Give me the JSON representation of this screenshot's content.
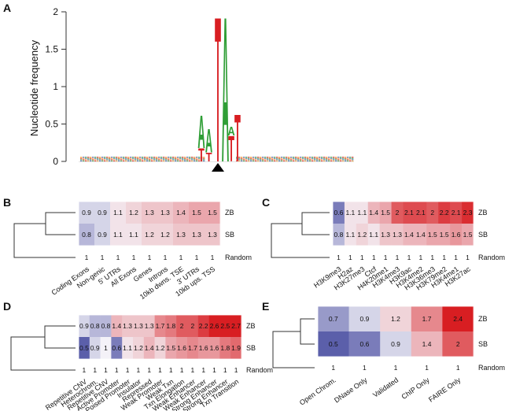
{
  "panels": {
    "a": {
      "label": "A"
    },
    "b": {
      "label": "B"
    },
    "c": {
      "label": "C"
    },
    "d": {
      "label": "D"
    },
    "e": {
      "label": "E"
    }
  },
  "chart_data": [
    {
      "type": "sequence-logo",
      "panel": "A",
      "ylabel": "Nucleotide frequency",
      "yticks": [
        0,
        0.5,
        1,
        1.5,
        2
      ],
      "ylim": [
        0,
        2
      ],
      "positions": [
        {
          "stack": [
            [
              "T",
              0.18
            ],
            [
              "A",
              0.45
            ]
          ]
        },
        {
          "stack": [
            [
              "T",
              0.12
            ],
            [
              "A",
              0.32
            ]
          ]
        },
        {
          "stack": [
            [
              "T",
              2.0
            ]
          ]
        },
        {
          "stack": [
            [
              "A",
              2.0
            ]
          ]
        },
        {
          "stack": [
            [
              "T",
              0.35
            ],
            [
              "A",
              0.12
            ]
          ]
        },
        {
          "stack": [
            [
              "T",
              0.65
            ]
          ]
        }
      ],
      "insertion_marker": true
    },
    {
      "type": "heatmap",
      "panel": "B",
      "rows": [
        "ZB",
        "SB",
        "Random"
      ],
      "columns": [
        "Coding Exons",
        "Non-genic",
        "5' UTRs",
        "All Exons",
        "Genes",
        "Introns",
        "10kb dwns. TSE",
        "3' UTRs",
        "10kb ups. TSS"
      ],
      "values": [
        [
          0.9,
          0.9,
          1.1,
          1.2,
          1.3,
          1.3,
          1.4,
          1.5,
          1.5
        ],
        [
          0.8,
          0.9,
          1.1,
          1.1,
          1.2,
          1.2,
          1.3,
          1.3,
          1.3
        ],
        [
          1,
          1,
          1,
          1,
          1,
          1,
          1,
          1,
          1
        ]
      ],
      "value_labels": [
        [
          "0.9",
          "0.9",
          "1.1",
          "1.2",
          "1.3",
          "1.3",
          "1.4",
          "1.5",
          "1.5"
        ],
        [
          "0.8",
          "0.9",
          "1.1",
          "1.1",
          "1.2",
          "1.2",
          "1.3",
          "1.3",
          "1.3"
        ],
        [
          "1",
          "1",
          "1",
          "1",
          "1",
          "1",
          "1",
          "1",
          "1"
        ]
      ]
    },
    {
      "type": "heatmap",
      "panel": "C",
      "rows": [
        "ZB",
        "SB",
        "Random"
      ],
      "columns": [
        "H3K9me3",
        "H2az",
        "H3K27me3",
        "Ctcf",
        "H4K20me1",
        "H3K4me3",
        "H3K9ac",
        "H3K4me2",
        "H3K36me3",
        "H3K79me2",
        "H3K4me1",
        "H3K27ac"
      ],
      "values": [
        [
          0.6,
          1.1,
          1.1,
          1.4,
          1.5,
          2,
          2.1,
          2.1,
          2,
          2.2,
          2.1,
          2.3
        ],
        [
          0.8,
          1.1,
          1.2,
          1.1,
          1.3,
          1.3,
          1.4,
          1.4,
          1.5,
          1.5,
          1.6,
          1.5
        ],
        [
          1,
          1,
          1,
          1,
          1,
          1,
          1,
          1,
          1,
          1,
          1,
          1
        ]
      ],
      "value_labels": [
        [
          "0.6",
          "1.1",
          "1.1",
          "1.4",
          "1.5",
          "2",
          "2.1",
          "2.1",
          "2",
          "2.2",
          "2.1",
          "2.3"
        ],
        [
          "0.8",
          "1.1",
          "1.2",
          "1.1",
          "1.3",
          "1.3",
          "1.4",
          "1.4",
          "1.5",
          "1.5",
          "1.6",
          "1.5"
        ],
        [
          "1",
          "1",
          "1",
          "1",
          "1",
          "1",
          "1",
          "1",
          "1",
          "1",
          "1",
          "1"
        ]
      ]
    },
    {
      "type": "heatmap",
      "panel": "D",
      "rows": [
        "ZB",
        "SB",
        "Random"
      ],
      "columns": [
        "Repetitive CNV",
        "Heterochrom.",
        "Repetitive CNV",
        "Active Promoter",
        "Poised Promoter",
        "Insulator",
        "Repressed",
        "Weak Promoter",
        "Weak Txn",
        "Txn Elongation",
        "Weak Enhancer",
        "Weak Enhancer",
        "Strong Enhancer",
        "Strong Enhancer",
        "Txn Transition"
      ],
      "values": [
        [
          0.9,
          0.8,
          0.8,
          1.4,
          1.3,
          1.3,
          1.3,
          1.7,
          1.8,
          2,
          2,
          2.2,
          2.6,
          2.5,
          2.7
        ],
        [
          0.5,
          0.9,
          1,
          0.6,
          1.1,
          1.2,
          1.4,
          1.2,
          1.5,
          1.6,
          1.7,
          1.6,
          1.6,
          1.8,
          1.9
        ],
        [
          1,
          1,
          1,
          1,
          1,
          1,
          1,
          1,
          1,
          1,
          1,
          1,
          1,
          1,
          1
        ]
      ],
      "value_labels": [
        [
          "0.9",
          "0.8",
          "0.8",
          "1.4",
          "1.3",
          "1.3",
          "1.3",
          "1.7",
          "1.8",
          "2",
          "2",
          "2.2",
          "2.6",
          "2.5",
          "2.7"
        ],
        [
          "0.5",
          "0.9",
          "1",
          "0.6",
          "1.1",
          "1.2",
          "1.4",
          "1.2",
          "1.5",
          "1.6",
          "1.7",
          "1.6",
          "1.6",
          "1.8",
          "1.9"
        ],
        [
          "1",
          "1",
          "1",
          "1",
          "1",
          "1",
          "1",
          "1",
          "1",
          "1",
          "1",
          "1",
          "1",
          "1",
          "1"
        ]
      ]
    },
    {
      "type": "heatmap",
      "panel": "E",
      "rows": [
        "ZB",
        "SB",
        "Random"
      ],
      "columns": [
        "Open Chrom.",
        "DNase Only",
        "Validated",
        "ChIP Only",
        "FAIRE Only"
      ],
      "values": [
        [
          0.7,
          0.9,
          1.2,
          1.7,
          2.4
        ],
        [
          0.5,
          0.6,
          0.9,
          1.4,
          2
        ],
        [
          1,
          1,
          1,
          1,
          1
        ]
      ],
      "value_labels": [
        [
          "0.7",
          "0.9",
          "1.2",
          "1.7",
          "2.4"
        ],
        [
          "0.5",
          "0.6",
          "0.9",
          "1.4",
          "2"
        ],
        [
          "1",
          "1",
          "1",
          "1",
          "1"
        ]
      ]
    }
  ],
  "colors": {
    "low": "#5b5faa",
    "mid": "#f4f2f8",
    "high": "#d81e22",
    "A": "#2f9e36",
    "T": "#d81e22",
    "C": "#3a55b0",
    "G": "#f0a020"
  }
}
